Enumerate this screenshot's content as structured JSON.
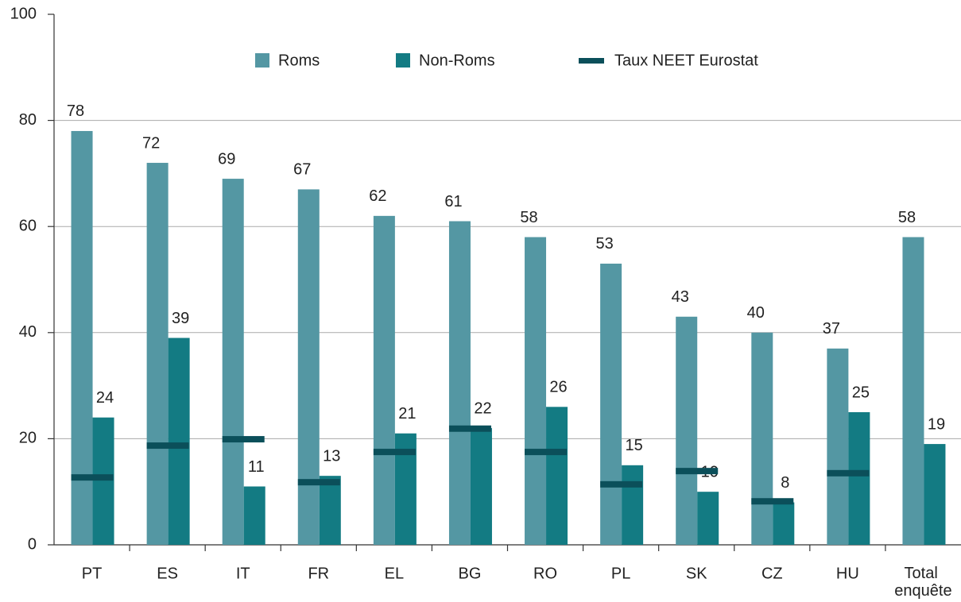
{
  "chart_data": {
    "type": "bar",
    "categories": [
      "PT",
      "ES",
      "IT",
      "FR",
      "EL",
      "BG",
      "RO",
      "PL",
      "SK",
      "CZ",
      "HU",
      "Total enquête"
    ],
    "series": [
      {
        "name": "Roms",
        "color": "#5497a3",
        "values": [
          78,
          72,
          69,
          67,
          62,
          61,
          58,
          53,
          43,
          40,
          37,
          58
        ]
      },
      {
        "name": "Non-Roms",
        "color": "#137b83",
        "values": [
          24,
          39,
          11,
          13,
          21,
          22,
          26,
          15,
          10,
          8,
          25,
          19
        ]
      },
      {
        "name": "Taux NEET Eurostat",
        "color": "#0b4f5a",
        "marker": "line",
        "values": [
          12.7,
          18.7,
          19.9,
          11.8,
          17.5,
          21.9,
          17.5,
          11.4,
          13.9,
          8.2,
          13.5,
          null
        ]
      }
    ],
    "ylim": [
      0,
      100
    ],
    "yticks": [
      0,
      20,
      40,
      60,
      80,
      100
    ],
    "grid": true,
    "legend": "top"
  }
}
